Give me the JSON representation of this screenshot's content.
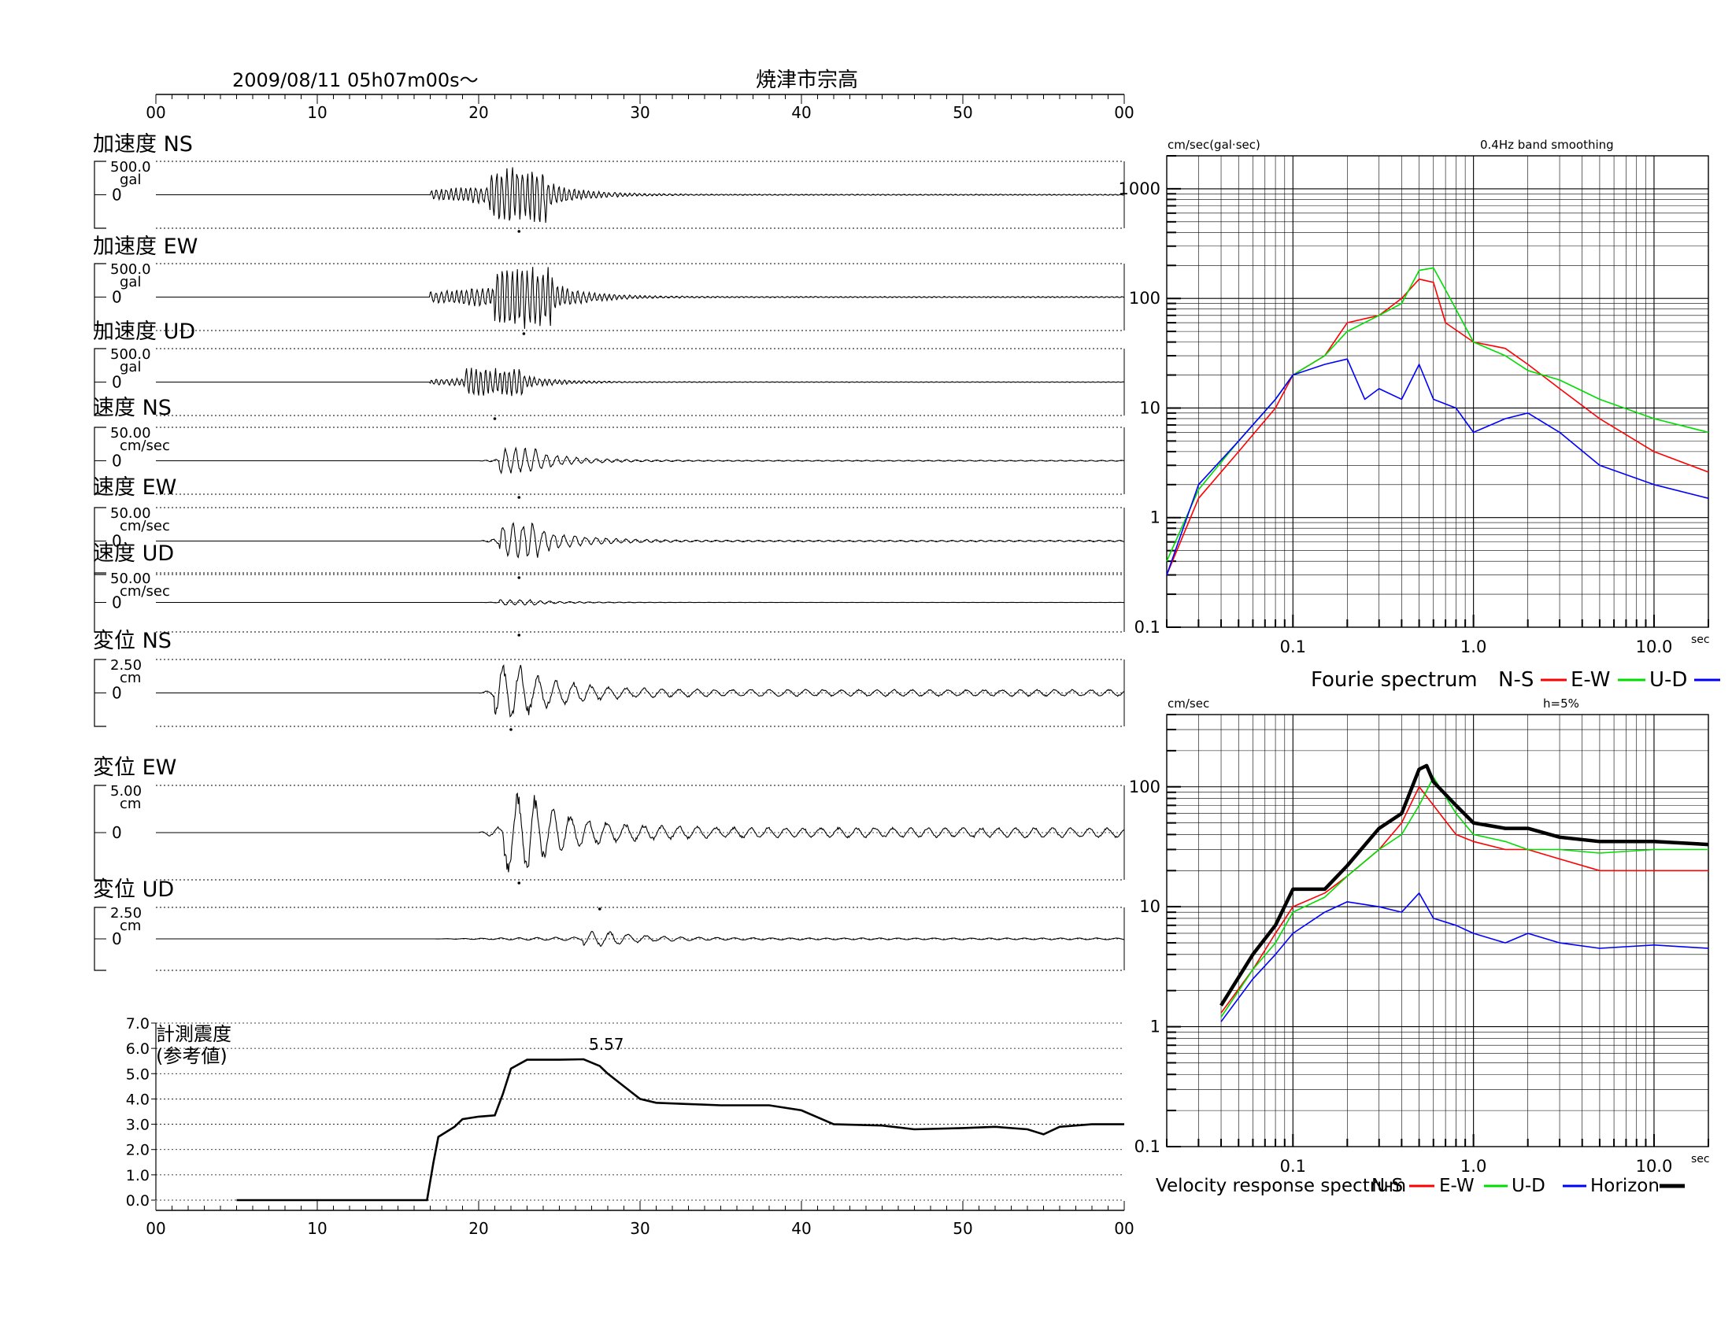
{
  "header": {
    "datetime": "2009/08/11  05h07m00s〜",
    "station": "焼津市宗高",
    "time_ticks": [
      "00",
      "10",
      "20",
      "30",
      "40",
      "50",
      "00"
    ]
  },
  "colors": {
    "trace": "#000000",
    "ns": "#ff0000",
    "ew": "#00dd00",
    "ud": "#0000ff",
    "horizon": "#000000"
  },
  "waveforms": [
    {
      "label": "加速度 NS",
      "max": "500.0",
      "unit": "gal",
      "zero": "0",
      "kind": "acc",
      "onset_s": 17,
      "peak_s": 22.5,
      "amp": 0.85,
      "seed": 11
    },
    {
      "label": "加速度 EW",
      "max": "500.0",
      "unit": "gal",
      "zero": "0",
      "kind": "acc",
      "onset_s": 17,
      "peak_s": 22.8,
      "amp": 0.95,
      "seed": 23
    },
    {
      "label": "加速度 UD",
      "max": "500.0",
      "unit": "gal",
      "zero": "0",
      "kind": "acc_ud",
      "onset_s": 17,
      "peak_s": 21.0,
      "amp": 0.45,
      "seed": 37
    },
    {
      "label": "速度 NS",
      "max": "50.00",
      "unit": "cm/sec",
      "zero": "0",
      "kind": "vel",
      "onset_s": 20,
      "peak_s": 22.5,
      "amp": 0.4,
      "seed": 41
    },
    {
      "label": "速度 EW",
      "max": "50.00",
      "unit": "cm/sec",
      "zero": "0",
      "kind": "vel",
      "onset_s": 20,
      "peak_s": 22.5,
      "amp": 0.6,
      "seed": 53
    },
    {
      "label": "速度 UD",
      "max": "50.00",
      "unit": "cm/sec",
      "zero": "0",
      "kind": "vel_ud",
      "onset_s": 20,
      "peak_s": 22.5,
      "amp": 0.1,
      "seed": 61
    },
    {
      "label": "変位 NS",
      "max": "2.50",
      "unit": "cm",
      "zero": "0",
      "kind": "disp",
      "onset_s": 20,
      "peak_s": 22.0,
      "amp": 0.9,
      "seed": 71
    },
    {
      "label": "変位 EW",
      "max": "5.00",
      "unit": "cm",
      "zero": "0",
      "kind": "disp",
      "onset_s": 20,
      "peak_s": 22.5,
      "amp": 0.95,
      "seed": 83
    },
    {
      "label": "変位 UD",
      "max": "2.50",
      "unit": "cm",
      "zero": "0",
      "kind": "disp_ud",
      "onset_s": 17,
      "peak_s": 27.5,
      "amp": 0.25,
      "seed": 97
    }
  ],
  "intensity": {
    "label_line1": "計測震度",
    "label_line2": "(参考値)",
    "peak_label": "5.57",
    "ticks": [
      "0.0",
      "1.0",
      "2.0",
      "3.0",
      "4.0",
      "5.0",
      "6.0",
      "7.0"
    ],
    "x_ticks": [
      "00",
      "10",
      "20",
      "30",
      "40",
      "50",
      "00"
    ]
  },
  "chart_data": [
    {
      "type": "line",
      "name_note": "intensity trace",
      "x_unit": "s",
      "ylim": [
        0,
        7
      ],
      "xlim": [
        0,
        60
      ],
      "x": [
        5,
        16.8,
        17.2,
        17.5,
        18.5,
        19,
        20,
        21,
        21.5,
        22,
        23,
        25,
        26.5,
        27.5,
        28,
        29,
        30,
        31,
        33,
        35,
        38,
        40,
        42,
        45,
        47,
        50,
        52,
        54,
        55,
        56,
        58,
        60
      ],
      "y": [
        0,
        0,
        1.5,
        2.5,
        2.9,
        3.2,
        3.3,
        3.35,
        4.2,
        5.2,
        5.55,
        5.55,
        5.57,
        5.3,
        5.0,
        4.5,
        4.0,
        3.85,
        3.8,
        3.75,
        3.75,
        3.55,
        3.0,
        2.95,
        2.8,
        2.85,
        2.9,
        2.8,
        2.6,
        2.9,
        3.0,
        3.0
      ]
    },
    {
      "type": "line",
      "title": "0.4Hz band smoothing",
      "ylabel": "cm/sec(gal·sec)",
      "xlabel": "sec",
      "log_x": true,
      "log_y": true,
      "xlim": [
        0.02,
        20
      ],
      "ylim": [
        0.1,
        2000
      ],
      "x_ticks": [
        "0.1",
        "1.0",
        "10.0"
      ],
      "y_ticks": [
        "0.1",
        "1",
        "10",
        "100",
        "1000"
      ],
      "legend_title": "Fourie spectrum",
      "series": [
        {
          "name": "N-S",
          "x": [
            0.02,
            0.03,
            0.05,
            0.08,
            0.1,
            0.15,
            0.2,
            0.3,
            0.4,
            0.5,
            0.6,
            0.7,
            1.0,
            1.5,
            2,
            3,
            5,
            10,
            20
          ],
          "y": [
            0.3,
            1.5,
            4,
            10,
            20,
            30,
            60,
            70,
            100,
            150,
            140,
            60,
            40,
            35,
            25,
            15,
            8,
            4,
            2.6
          ]
        },
        {
          "name": "E-W",
          "x": [
            0.02,
            0.03,
            0.05,
            0.08,
            0.1,
            0.15,
            0.2,
            0.3,
            0.4,
            0.5,
            0.6,
            0.7,
            1.0,
            1.5,
            2,
            3,
            5,
            10,
            20
          ],
          "y": [
            0.4,
            1.8,
            5,
            12,
            20,
            30,
            50,
            70,
            90,
            180,
            190,
            120,
            40,
            30,
            22,
            18,
            12,
            8,
            6
          ]
        },
        {
          "name": "U-D",
          "x": [
            0.02,
            0.03,
            0.05,
            0.08,
            0.1,
            0.15,
            0.2,
            0.25,
            0.3,
            0.4,
            0.5,
            0.6,
            0.8,
            1.0,
            1.5,
            2,
            3,
            5,
            10,
            20
          ],
          "y": [
            0.3,
            2,
            5,
            12,
            20,
            25,
            28,
            12,
            15,
            12,
            25,
            12,
            10,
            6,
            8,
            9,
            6,
            3,
            2,
            1.5
          ]
        }
      ]
    },
    {
      "type": "line",
      "title": "h=5%",
      "ylabel": "cm/sec",
      "xlabel": "sec",
      "log_x": true,
      "log_y": true,
      "xlim": [
        0.02,
        20
      ],
      "ylim": [
        0.1,
        400
      ],
      "x_ticks": [
        "0.1",
        "1.0",
        "10.0"
      ],
      "y_ticks": [
        "0.1",
        "1",
        "10",
        "100"
      ],
      "legend_title": "Velocity response spectrum",
      "series": [
        {
          "name": "N-S",
          "x": [
            0.04,
            0.06,
            0.08,
            0.1,
            0.15,
            0.2,
            0.3,
            0.4,
            0.5,
            0.6,
            0.8,
            1.0,
            1.5,
            2,
            3,
            5,
            10,
            20
          ],
          "y": [
            1.3,
            3,
            6,
            10,
            13,
            18,
            30,
            50,
            100,
            70,
            40,
            35,
            30,
            30,
            25,
            20,
            20,
            20
          ]
        },
        {
          "name": "E-W",
          "x": [
            0.04,
            0.06,
            0.08,
            0.1,
            0.15,
            0.2,
            0.3,
            0.4,
            0.5,
            0.6,
            0.8,
            1.0,
            1.5,
            2,
            3,
            5,
            10,
            20
          ],
          "y": [
            1.2,
            3,
            5,
            9,
            12,
            18,
            30,
            40,
            70,
            120,
            60,
            40,
            35,
            30,
            30,
            28,
            30,
            30
          ]
        },
        {
          "name": "U-D",
          "x": [
            0.04,
            0.06,
            0.08,
            0.1,
            0.15,
            0.2,
            0.3,
            0.4,
            0.5,
            0.6,
            0.8,
            1.0,
            1.5,
            2,
            3,
            5,
            10,
            20
          ],
          "y": [
            1.1,
            2.5,
            4,
            6,
            9,
            11,
            10,
            9,
            13,
            8,
            7,
            6,
            5,
            6,
            5,
            4.5,
            4.8,
            4.5
          ]
        },
        {
          "name": "Horizon",
          "x": [
            0.04,
            0.06,
            0.08,
            0.1,
            0.15,
            0.2,
            0.3,
            0.4,
            0.5,
            0.55,
            0.6,
            0.8,
            1.0,
            1.5,
            2,
            3,
            5,
            10,
            20
          ],
          "y": [
            1.5,
            4,
            7,
            14,
            14,
            22,
            45,
            60,
            140,
            150,
            110,
            70,
            50,
            45,
            45,
            38,
            35,
            35,
            33
          ]
        }
      ]
    }
  ]
}
